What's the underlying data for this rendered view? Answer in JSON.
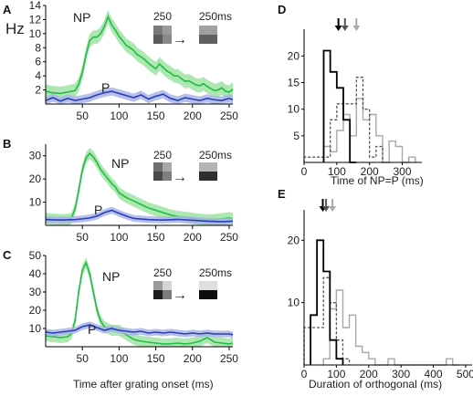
{
  "colors": {
    "np": "#22bb44",
    "np_band": "#9fe3a4",
    "p": "#2a3fb6",
    "p_band": "#a9b5e6",
    "p_label": "#1f6fd1",
    "hist_black": "#000000",
    "hist_dark": "#555555",
    "hist_gray": "#a8a8a8"
  },
  "stim": {
    "start": "250",
    "end": "250ms",
    "arrow_glyph": "→"
  },
  "left": {
    "y_unit": "Hz",
    "xlabel": "Time after grating onset (ms)",
    "xticks": [
      50,
      100,
      150,
      200,
      250
    ],
    "np_label": "NP",
    "p_label": "P"
  },
  "right": {
    "xlabel_D": "Time of NP=P (ms)",
    "xlabel_E": "Duration of orthogonal (ms)"
  },
  "chart_data": [
    {
      "panel": "A",
      "type": "line",
      "xlim": [
        0,
        255
      ],
      "ylim": [
        0,
        14
      ],
      "yticks": [
        2,
        4,
        6,
        8,
        10,
        12,
        14
      ],
      "series": [
        {
          "name": "NP",
          "x": [
            0,
            10,
            20,
            30,
            40,
            45,
            50,
            55,
            60,
            65,
            70,
            75,
            80,
            85,
            90,
            95,
            100,
            105,
            110,
            115,
            120,
            125,
            130,
            135,
            140,
            145,
            150,
            155,
            160,
            165,
            170,
            175,
            180,
            185,
            190,
            195,
            200,
            205,
            210,
            215,
            220,
            225,
            230,
            235,
            240,
            245,
            250,
            255
          ],
          "y": [
            1.8,
            1.6,
            1.5,
            1.7,
            1.9,
            2.8,
            4.5,
            7.0,
            9.0,
            9.5,
            9.5,
            10.0,
            11.0,
            12.4,
            11.2,
            10.5,
            9.6,
            9.0,
            8.3,
            8.0,
            7.6,
            7.0,
            6.7,
            6.3,
            5.8,
            5.4,
            5.0,
            5.7,
            5.2,
            4.7,
            4.4,
            4.0,
            4.0,
            3.6,
            3.2,
            3.3,
            3.0,
            2.7,
            2.6,
            2.9,
            2.5,
            2.2,
            1.9,
            2.0,
            2.3,
            1.8,
            1.7,
            2.1
          ]
        },
        {
          "name": "P",
          "x": [
            0,
            10,
            20,
            30,
            40,
            50,
            60,
            70,
            80,
            90,
            100,
            110,
            120,
            130,
            140,
            150,
            160,
            170,
            180,
            190,
            200,
            210,
            220,
            230,
            240,
            250,
            255
          ],
          "y": [
            0.5,
            0.9,
            0.4,
            0.8,
            0.5,
            0.7,
            0.9,
            1.3,
            1.6,
            1.8,
            1.5,
            1.2,
            0.9,
            1.3,
            0.7,
            1.1,
            1.4,
            0.8,
            0.5,
            0.9,
            0.7,
            0.5,
            0.8,
            0.6,
            0.5,
            0.8,
            0.6
          ]
        }
      ]
    },
    {
      "panel": "B",
      "type": "line",
      "xlim": [
        0,
        255
      ],
      "ylim": [
        0,
        35
      ],
      "yticks": [
        10,
        20,
        30
      ],
      "series": [
        {
          "name": "NP",
          "x": [
            0,
            10,
            20,
            30,
            35,
            40,
            45,
            50,
            55,
            60,
            65,
            70,
            75,
            80,
            85,
            90,
            95,
            100,
            110,
            120,
            130,
            140,
            150,
            160,
            170,
            180,
            190,
            200,
            210,
            220,
            230,
            240,
            250,
            255
          ],
          "y": [
            3.0,
            2.6,
            2.4,
            2.5,
            3.0,
            7.0,
            15.0,
            24.0,
            29.0,
            31.0,
            29.5,
            27.0,
            24.0,
            22.0,
            20.0,
            18.0,
            16.5,
            14.0,
            12.0,
            10.5,
            9.0,
            7.5,
            6.5,
            5.5,
            4.5,
            3.8,
            3.5,
            3.0,
            2.6,
            2.3,
            2.4,
            2.8,
            3.2,
            3.0
          ]
        },
        {
          "name": "P",
          "x": [
            0,
            20,
            40,
            50,
            60,
            70,
            80,
            90,
            100,
            110,
            120,
            140,
            160,
            180,
            200,
            220,
            240,
            255
          ],
          "y": [
            2.5,
            2.3,
            2.5,
            2.8,
            3.2,
            4.0,
            5.5,
            6.5,
            5.2,
            4.0,
            3.0,
            2.5,
            2.3,
            2.6,
            2.2,
            1.8,
            1.6,
            1.8
          ]
        }
      ]
    },
    {
      "panel": "C",
      "type": "line",
      "xlim": [
        0,
        255
      ],
      "ylim": [
        0,
        50
      ],
      "yticks": [
        10,
        20,
        30,
        40,
        50
      ],
      "series": [
        {
          "name": "NP",
          "x": [
            0,
            10,
            20,
            30,
            35,
            40,
            45,
            50,
            55,
            60,
            65,
            70,
            75,
            80,
            90,
            100,
            110,
            120,
            130,
            140,
            150,
            160,
            170,
            180,
            190,
            200,
            210,
            220,
            230,
            240,
            250,
            255
          ],
          "y": [
            6.0,
            5.5,
            5.0,
            5.5,
            7.0,
            14.0,
            30.0,
            42.0,
            46.0,
            40.0,
            30.0,
            20.0,
            14.0,
            11.0,
            9.0,
            9.0,
            6.5,
            4.0,
            3.0,
            2.5,
            2.0,
            1.5,
            1.6,
            2.0,
            1.5,
            2.0,
            3.0,
            5.0,
            2.5,
            2.0,
            1.5,
            2.0
          ]
        },
        {
          "name": "P",
          "x": [
            0,
            10,
            20,
            30,
            40,
            50,
            60,
            70,
            80,
            90,
            100,
            110,
            120,
            130,
            140,
            150,
            160,
            170,
            180,
            190,
            200,
            210,
            220,
            230,
            240,
            250,
            255
          ],
          "y": [
            8.0,
            7.5,
            8.0,
            8.5,
            9.0,
            11.0,
            12.0,
            10.5,
            9.0,
            10.0,
            9.0,
            8.5,
            8.0,
            8.5,
            7.5,
            8.0,
            7.5,
            8.0,
            7.5,
            7.0,
            7.5,
            7.0,
            7.5,
            7.0,
            7.0,
            7.0,
            6.5
          ]
        }
      ]
    },
    {
      "panel": "D",
      "type": "histogram",
      "xlim": [
        0,
        360
      ],
      "ylim": [
        0,
        24
      ],
      "xticks": [
        0,
        100,
        200,
        300
      ],
      "yticks": [
        5,
        10,
        15,
        20
      ],
      "arrows_x": [
        105,
        125,
        160
      ],
      "series": [
        {
          "name": "",
          "color": "black",
          "bin_edges": [
            60,
            80,
            100,
            120,
            140,
            160
          ],
          "counts": [
            21,
            17,
            14,
            8,
            0
          ]
        },
        {
          "name": "",
          "color": "darkgray",
          "dashed": true,
          "bin_edges": [
            0,
            80,
            100,
            120,
            140,
            160,
            180,
            200,
            220,
            240
          ],
          "counts": [
            1,
            8,
            11,
            11,
            11,
            16,
            10,
            1,
            3
          ]
        },
        {
          "name": "",
          "color": "lightgray",
          "bin_edges": [
            60,
            80,
            100,
            120,
            140,
            160,
            180,
            200,
            220,
            240,
            260,
            280,
            300,
            320,
            340
          ],
          "counts": [
            3,
            2,
            6,
            9,
            5,
            12,
            8,
            9,
            5,
            0,
            4,
            3,
            0,
            1
          ]
        }
      ]
    },
    {
      "panel": "E",
      "type": "histogram",
      "xlim": [
        0,
        520
      ],
      "ylim": [
        0,
        24
      ],
      "xticks": [
        0,
        100,
        200,
        300,
        400,
        500
      ],
      "yticks": [
        10,
        20
      ],
      "arrows_x": [
        58,
        68,
        88
      ],
      "series": [
        {
          "name": "",
          "color": "black",
          "bin_edges": [
            20,
            40,
            60,
            80,
            100,
            120
          ],
          "counts": [
            8,
            20,
            15,
            4,
            1
          ]
        },
        {
          "name": "",
          "color": "darkgray",
          "dashed": true,
          "bin_edges": [
            0,
            60,
            80,
            100,
            120,
            140
          ],
          "counts": [
            6,
            14,
            10,
            4,
            1
          ]
        },
        {
          "name": "",
          "color": "lightgray",
          "bin_edges": [
            60,
            80,
            100,
            120,
            140,
            160,
            180,
            200,
            220,
            260,
            280,
            440,
            460,
            480
          ],
          "counts": [
            1,
            9,
            12,
            6,
            8,
            3,
            2,
            1,
            0,
            1,
            0,
            1,
            0
          ]
        }
      ]
    }
  ]
}
